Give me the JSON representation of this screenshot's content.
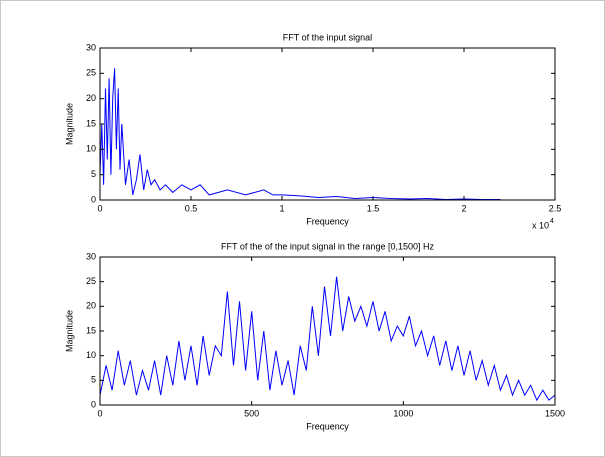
{
  "chart_data": [
    {
      "type": "line",
      "title": "FFT of the input signal",
      "xlabel": "Frequency",
      "ylabel": "Magnitude",
      "x_scale_label": "x 10",
      "x_scale_exponent": "4",
      "x": [
        0,
        0.01,
        0.02,
        0.03,
        0.04,
        0.05,
        0.06,
        0.07,
        0.08,
        0.09,
        0.1,
        0.11,
        0.12,
        0.14,
        0.16,
        0.18,
        0.2,
        0.22,
        0.24,
        0.26,
        0.28,
        0.3,
        0.33,
        0.36,
        0.4,
        0.45,
        0.5,
        0.55,
        0.6,
        0.7,
        0.8,
        0.9,
        0.95,
        1.0,
        1.1,
        1.2,
        1.3,
        1.4,
        1.5,
        1.6,
        1.7,
        1.8,
        1.9,
        2.0,
        2.1,
        2.2
      ],
      "values": [
        5,
        15,
        3,
        22,
        8,
        24,
        5,
        20,
        26,
        10,
        22,
        6,
        15,
        3,
        8,
        1,
        4,
        9,
        2,
        6,
        3,
        4,
        2,
        3,
        1.5,
        3,
        2,
        3,
        1,
        2,
        1,
        2,
        1,
        1,
        0.8,
        0.5,
        0.7,
        0.3,
        0.5,
        0.3,
        0.2,
        0.3,
        0.1,
        0.2,
        0.1,
        0.1
      ],
      "color": "#0000ff",
      "xlim": [
        0,
        2.5
      ],
      "xticks": [
        0,
        0.5,
        1,
        1.5,
        2,
        2.5
      ],
      "ylim": [
        0,
        30
      ],
      "yticks": [
        0,
        5,
        10,
        15,
        20,
        25,
        30
      ]
    },
    {
      "type": "line",
      "title": "FFT of the of the input signal in the range [0,1500] Hz",
      "xlabel": "Frequency",
      "ylabel": "Magnitude",
      "x": [
        0,
        20,
        40,
        60,
        80,
        100,
        120,
        140,
        160,
        180,
        200,
        220,
        240,
        260,
        280,
        300,
        320,
        340,
        360,
        380,
        400,
        420,
        440,
        460,
        480,
        500,
        520,
        540,
        560,
        580,
        600,
        620,
        640,
        660,
        680,
        700,
        720,
        740,
        760,
        780,
        800,
        820,
        840,
        860,
        880,
        900,
        920,
        940,
        960,
        980,
        1000,
        1020,
        1040,
        1060,
        1080,
        1100,
        1120,
        1140,
        1160,
        1180,
        1200,
        1220,
        1240,
        1260,
        1280,
        1300,
        1320,
        1340,
        1360,
        1380,
        1400,
        1420,
        1440,
        1460,
        1480,
        1500
      ],
      "values": [
        2,
        8,
        3,
        11,
        4,
        9,
        2,
        7,
        3,
        9,
        2,
        10,
        4,
        13,
        5,
        12,
        4,
        14,
        6,
        12,
        10,
        23,
        8,
        21,
        7,
        19,
        5,
        15,
        3,
        11,
        4,
        9,
        2,
        12,
        7,
        20,
        10,
        24,
        14,
        26,
        15,
        22,
        17,
        20,
        16,
        21,
        15,
        19,
        13,
        16,
        14,
        18,
        12,
        15,
        10,
        14,
        8,
        13,
        7,
        12,
        6,
        11,
        5,
        9,
        4,
        8,
        3,
        6,
        2,
        5,
        2,
        4,
        1,
        3,
        1,
        2
      ],
      "color": "#0000ff",
      "xlim": [
        0,
        1500
      ],
      "xticks": [
        0,
        500,
        1000,
        1500
      ],
      "ylim": [
        0,
        30
      ],
      "yticks": [
        0,
        5,
        10,
        15,
        20,
        25,
        30
      ]
    }
  ]
}
